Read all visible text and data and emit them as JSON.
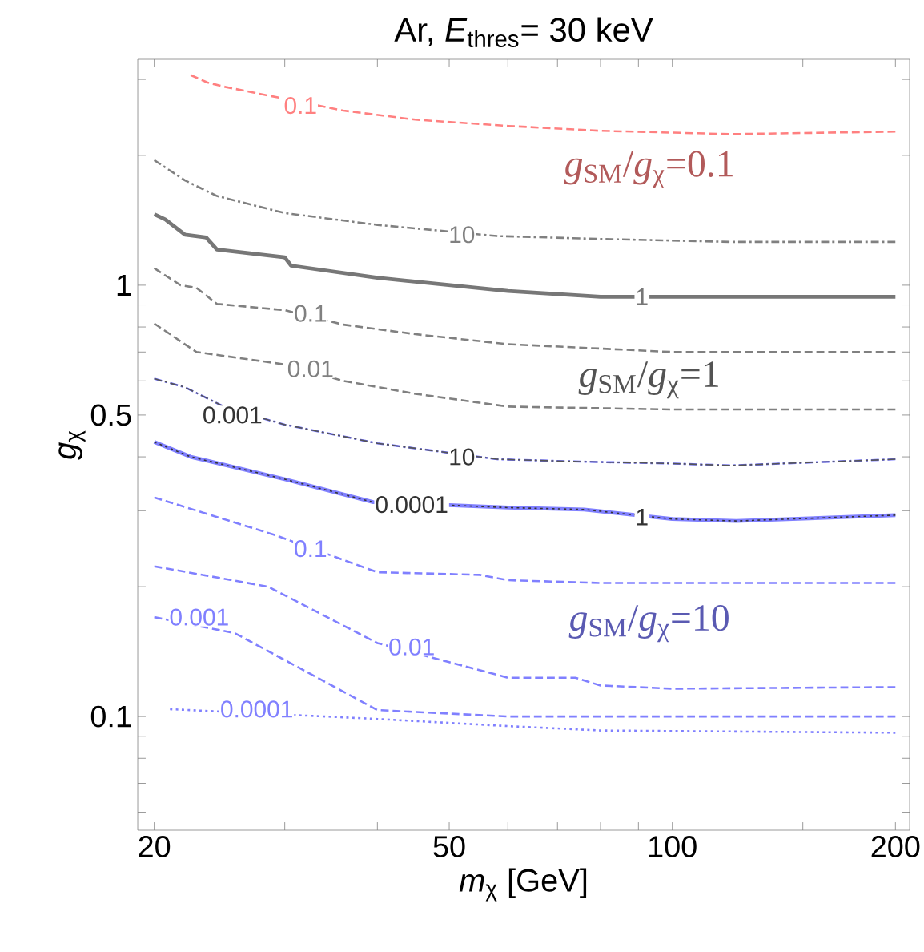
{
  "chart_data": {
    "type": "line",
    "title": "Ar, *E*$_{thres}$= 30 keV",
    "xlabel": "*m*$_{χ}$ [GeV]",
    "ylabel": "*g*$_{χ}$",
    "log": "xy",
    "grid": false,
    "marker": "none",
    "xlim": [
      19,
      209
    ],
    "ylim": [
      0.0545,
      3.34
    ],
    "xticks": [
      20,
      {
        "value": 30,
        "label": null
      },
      {
        "value": 40,
        "label": null
      },
      50,
      {
        "value": 60,
        "label": null
      },
      {
        "value": 70,
        "label": null
      },
      {
        "value": 80,
        "label": null
      },
      {
        "value": 90,
        "label": null
      },
      100,
      {
        "value": 150,
        "label": null
      },
      200
    ],
    "yticks": [
      {
        "value": 0.06,
        "label": null
      },
      {
        "value": 0.07,
        "label": null
      },
      {
        "value": 0.08,
        "label": null
      },
      {
        "value": 0.09,
        "label": null
      },
      0.1,
      {
        "value": 0.2,
        "label": null
      },
      {
        "value": 0.3,
        "label": null
      },
      {
        "value": 0.4,
        "label": null
      },
      0.5,
      {
        "value": 0.6,
        "label": null
      },
      {
        "value": 0.7,
        "label": null
      },
      {
        "value": 0.8,
        "label": null
      },
      {
        "value": 0.9,
        "label": null
      },
      1,
      {
        "value": 2,
        "label": null
      },
      {
        "value": 3,
        "label": null
      }
    ],
    "series": [
      {
        "color": "#ff8080",
        "line_style": "dashed",
        "x": [
          22.4,
          23.6,
          25,
          36,
          45,
          60,
          80,
          120,
          200
        ],
        "values": [
          3.07,
          2.95,
          2.88,
          2.54,
          2.42,
          2.34,
          2.28,
          2.24,
          2.27
        ]
      },
      {
        "color": "#808080",
        "line_style": "dashdot",
        "x": [
          20,
          22,
          24.3,
          30,
          40,
          58,
          80,
          120,
          200
        ],
        "values": [
          1.95,
          1.75,
          1.61,
          1.47,
          1.38,
          1.3,
          1.28,
          1.26,
          1.26
        ]
      },
      {
        "color": "#777777",
        "line_style": "solid",
        "x": [
          20,
          20.7,
          22,
          23.5,
          24.3,
          30,
          30.6,
          40,
          60,
          80,
          120,
          200
        ],
        "values": [
          1.46,
          1.42,
          1.31,
          1.29,
          1.21,
          1.16,
          1.11,
          1.04,
          0.97,
          0.94,
          0.94,
          0.94
        ]
      },
      {
        "color": "#808080",
        "line_style": "dashed",
        "x": [
          20,
          21.7,
          22.8,
          24.3,
          30,
          36,
          45,
          60,
          100,
          200
        ],
        "values": [
          1.095,
          1.0,
          0.986,
          0.905,
          0.875,
          0.81,
          0.77,
          0.73,
          0.7,
          0.7
        ]
      },
      {
        "color": "#808080",
        "line_style": "dashed",
        "x": [
          20,
          22.8,
          30,
          36,
          45,
          60,
          100,
          200
        ],
        "values": [
          0.815,
          0.7,
          0.655,
          0.6,
          0.56,
          0.523,
          0.515,
          0.515
        ]
      },
      {
        "color": "#7070ff",
        "line_style": "dashdot",
        "x": [
          20,
          22,
          25,
          30,
          40,
          58,
          75,
          100,
          120,
          200
        ],
        "values": [
          0.607,
          0.58,
          0.52,
          0.475,
          0.43,
          0.395,
          0.39,
          0.386,
          0.382,
          0.395
        ]
      },
      {
        "color": "#555555",
        "line_style": "dashdot",
        "x": [
          20,
          22,
          25,
          30,
          40,
          58,
          75,
          100,
          120,
          200
        ],
        "values": [
          0.607,
          0.58,
          0.52,
          0.475,
          0.43,
          0.395,
          0.39,
          0.386,
          0.382,
          0.395
        ]
      },
      {
        "color": "#8080ff",
        "line_style": "solid",
        "x": [
          20,
          22.4,
          30,
          39.5,
          50,
          60,
          76,
          100,
          122,
          200
        ],
        "values": [
          0.433,
          0.4,
          0.355,
          0.314,
          0.309,
          0.305,
          0.302,
          0.287,
          0.284,
          0.293
        ]
      },
      {
        "color": "#333333",
        "line_style": "dotted",
        "x": [
          20,
          22.4,
          30,
          39.5,
          50,
          60,
          76,
          100,
          122,
          200
        ],
        "values": [
          0.433,
          0.4,
          0.355,
          0.314,
          0.309,
          0.305,
          0.302,
          0.287,
          0.284,
          0.293
        ]
      },
      {
        "color": "#8080ff",
        "line_style": "dashed",
        "x": [
          20,
          29,
          40,
          55,
          60,
          80,
          200
        ],
        "values": [
          0.322,
          0.264,
          0.216,
          0.213,
          0.207,
          0.204,
          0.204
        ]
      },
      {
        "color": "#8080ff",
        "line_style": "dashed",
        "x": [
          20,
          28.5,
          40,
          60,
          74,
          80,
          100,
          200
        ],
        "values": [
          0.223,
          0.2,
          0.148,
          0.123,
          0.123,
          0.118,
          0.116,
          0.117
        ]
      },
      {
        "color": "#8080ff",
        "line_style": "dashed",
        "x": [
          20,
          25.7,
          40,
          60,
          200
        ],
        "values": [
          0.17,
          0.156,
          0.1035,
          0.1,
          0.1
        ]
      },
      {
        "color": "#8080ff",
        "line_style": "dotted",
        "x": [
          21,
          40,
          60,
          80,
          200
        ],
        "values": [
          0.104,
          0.0987,
          0.095,
          0.0928,
          0.0917
        ]
      }
    ],
    "annotations": [
      {
        "text": "0.1",
        "x": 31.5,
        "y": 2.61
      },
      {
        "text": "10",
        "x": 52,
        "y": 1.31
      },
      {
        "text": "1",
        "x": 91,
        "y": 0.94
      },
      {
        "text": "0.1",
        "x": 32.5,
        "y": 0.86
      },
      {
        "text": "0.01",
        "x": 32.5,
        "y": 0.64
      },
      {
        "text": "0.001",
        "x": 25.5,
        "y": 0.5
      },
      {
        "text": "10",
        "x": 52,
        "y": 0.4
      },
      {
        "text": "0.0001",
        "x": 44.5,
        "y": 0.31
      },
      {
        "text": "1",
        "x": 91,
        "y": 0.29
      },
      {
        "text": "0.1",
        "x": 32.5,
        "y": 0.245
      },
      {
        "text": "0.01",
        "x": 44.5,
        "y": 0.145
      },
      {
        "text": "0.001",
        "x": 23,
        "y": 0.17
      },
      {
        "text": "0.0001",
        "x": 27.5,
        "y": 0.104
      },
      "*g*$_{SM}$/*g*$_{χ}$=0.1",
      "*g*$_{SM}$/*g*$_{χ}$=1",
      "*g*$_{SM}$/*g*$_{χ}$=10"
    ]
  }
}
